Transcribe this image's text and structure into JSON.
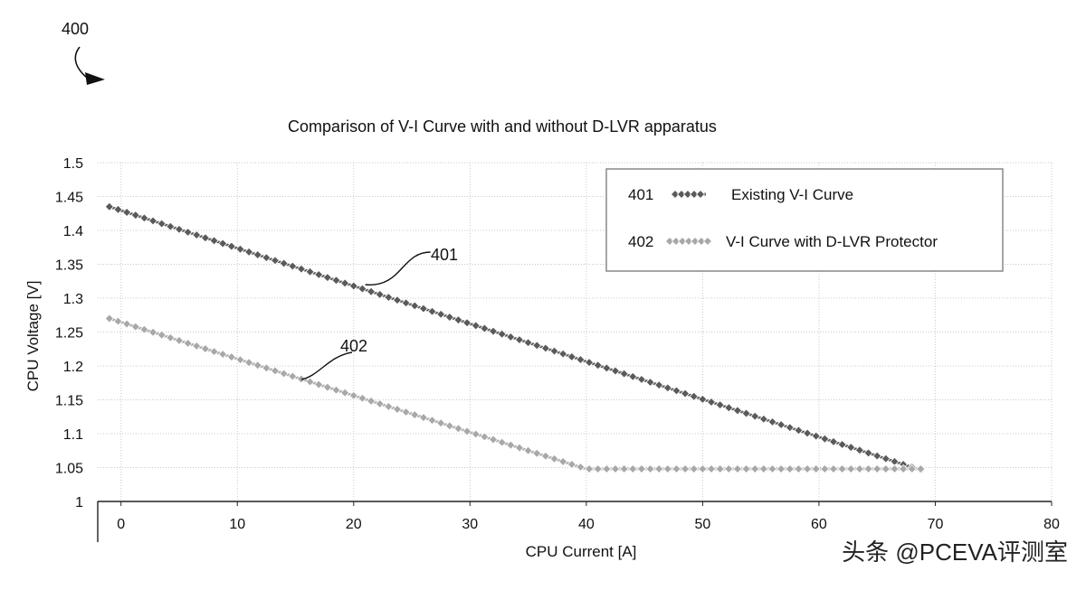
{
  "figure": {
    "label": "400"
  },
  "watermark": "头条 @PCEVA评测室",
  "chart_data": {
    "type": "line",
    "title": "Comparison of V-I Curve with and without D-LVR apparatus",
    "xlabel": "CPU Current [A]",
    "ylabel": "CPU Voltage [V]",
    "xlim": [
      -2,
      80
    ],
    "ylim": [
      1.0,
      1.5
    ],
    "xticks": [
      0,
      10,
      20,
      30,
      40,
      50,
      60,
      70,
      80
    ],
    "yticks": [
      1,
      1.05,
      1.1,
      1.15,
      1.2,
      1.25,
      1.3,
      1.35,
      1.4,
      1.45,
      1.5
    ],
    "ytick_labels": [
      "1",
      "1.05",
      "1.1",
      "1.15",
      "1.2",
      "1.25",
      "1.3",
      "1.35",
      "1.4",
      "1.45",
      "1.5"
    ],
    "xtick_labels": [
      "0",
      "10",
      "20",
      "30",
      "40",
      "50",
      "60",
      "70",
      "80"
    ],
    "grid": true,
    "legend_position": "top-right",
    "series": [
      {
        "id": "401",
        "name": "Existing V-I Curve",
        "color": "#5a5a5a",
        "x": [
          -1,
          69
        ],
        "y": [
          1.435,
          1.045
        ]
      },
      {
        "id": "402",
        "name": "V-I Curve with D-LVR Protector",
        "color": "#a8a8a8",
        "x": [
          -1,
          40,
          69
        ],
        "y": [
          1.27,
          1.048,
          1.048
        ]
      }
    ],
    "annotations": [
      {
        "text": "401",
        "series": "401",
        "at_x": 21,
        "at_y": 1.32
      },
      {
        "text": "402",
        "series": "402",
        "at_x": 15.5,
        "at_y": 1.18
      }
    ]
  }
}
